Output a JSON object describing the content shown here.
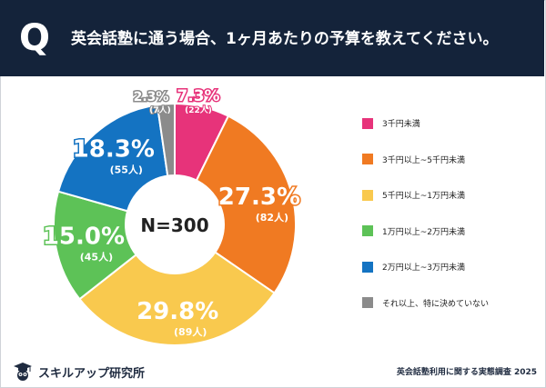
{
  "header": {
    "q_badge": "Q",
    "question": "英会話塾に通う場合、1ヶ月あたりの予算を教えてください。"
  },
  "chart_data": {
    "type": "pie",
    "variant": "donut",
    "center_label": "N=300",
    "legend_position": "right",
    "slices": [
      {
        "label": "3千円未満",
        "percent": 7.3,
        "count": 22,
        "color": "#e7337a",
        "percent_text": "7.3%",
        "count_text": "(22人)"
      },
      {
        "label": "3千円以上~5千円未満",
        "percent": 27.3,
        "count": 82,
        "color": "#f07a22",
        "percent_text": "27.3%",
        "count_text": "(82人)"
      },
      {
        "label": "5千円以上~1万円未満",
        "percent": 29.8,
        "count": 89,
        "color": "#f9c94e",
        "percent_text": "29.8%",
        "count_text": "(89人)"
      },
      {
        "label": "1万円以上~2万円未満",
        "percent": 15.0,
        "count": 45,
        "color": "#5dc257",
        "percent_text": "15.0%",
        "count_text": "(45人)"
      },
      {
        "label": "2万円以上~3万円未満",
        "percent": 18.3,
        "count": 55,
        "color": "#1473c2",
        "percent_text": "18.3%",
        "count_text": "(55人)"
      },
      {
        "label": "それ以上、特に決めていない",
        "percent": 2.3,
        "count": 7,
        "color": "#8b8b8b",
        "percent_text": "2.3%",
        "count_text": "(7人)"
      }
    ]
  },
  "footer": {
    "logo_text": "スキルアップ研究所",
    "source": "英会話塾利用に関する実態調査 2025"
  },
  "icons": {
    "logo": "graduation-cap-owl-icon"
  }
}
